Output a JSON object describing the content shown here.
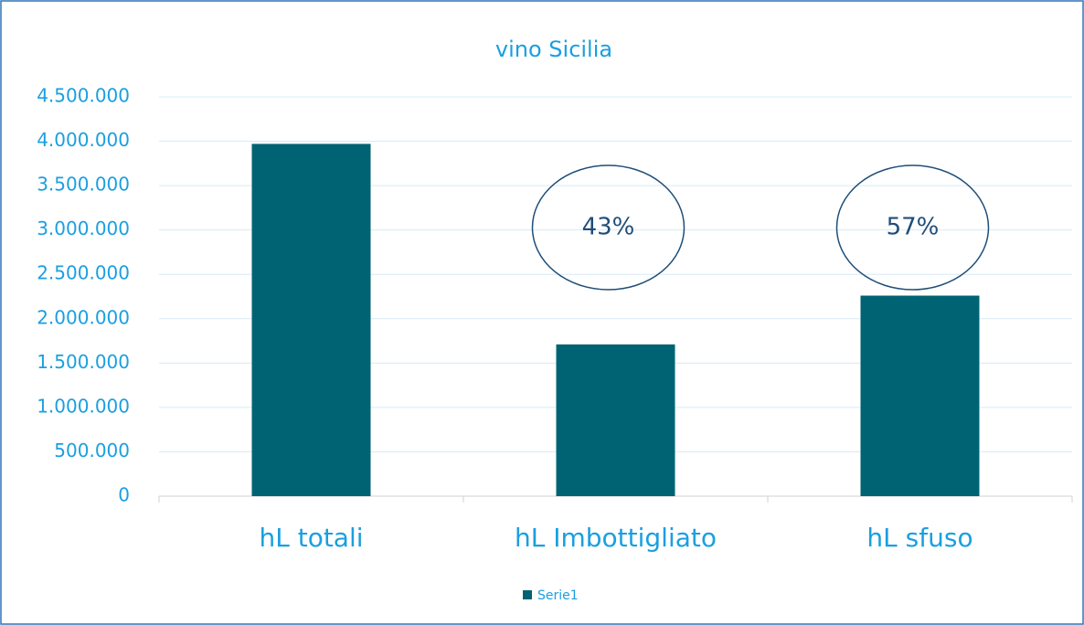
{
  "chart_data": {
    "type": "bar",
    "title": "vino Sicilia",
    "categories": [
      "hL totali",
      "hL Imbottigliato",
      "hL sfuso"
    ],
    "series": [
      {
        "name": "Serie1",
        "color": "#006373",
        "values": [
          3970000,
          1710000,
          2260000
        ]
      }
    ],
    "ylim": [
      0,
      4500000
    ],
    "yticks": [
      0,
      {
        "value": 500000,
        "label": "500.000"
      },
      {
        "value": 1000000,
        "label": "1.000.000"
      },
      {
        "value": 1500000,
        "label": "1.500.000"
      },
      {
        "value": 2000000,
        "label": "2.000.000"
      },
      {
        "value": 2500000,
        "label": "2.500.000"
      },
      {
        "value": 3000000,
        "label": "3.000.000"
      },
      {
        "value": 3500000,
        "label": "3.500.000"
      },
      {
        "value": 4000000,
        "label": "4.000.000"
      },
      {
        "value": 4500000,
        "label": "4.500.000"
      }
    ],
    "grid": true,
    "legend": "bottom",
    "annotations": [
      {
        "text": "43%",
        "category": "hL Imbottigliato"
      },
      {
        "text": "57%",
        "category": "hL sfuso"
      }
    ]
  }
}
